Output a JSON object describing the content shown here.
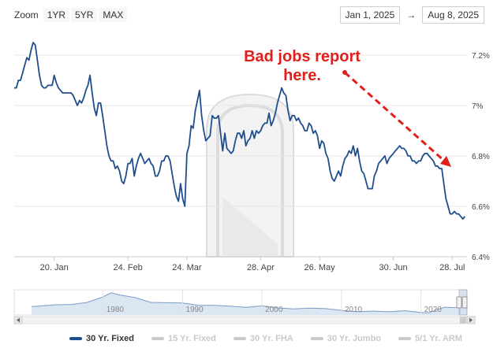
{
  "zoom": {
    "label": "Zoom",
    "buttons": [
      "1YR",
      "5YR",
      "MAX"
    ]
  },
  "range": {
    "from": "Jan 1, 2025",
    "to": "Aug 8, 2025",
    "arrow": "→"
  },
  "annotation": {
    "line1": "Bad jobs report",
    "line2": "here."
  },
  "colors": {
    "series": "#1f4e8c",
    "annotation": "#e0201b",
    "inactive": "#c9c9c9",
    "watermark": "#dcdcdc"
  },
  "legend": [
    {
      "label": "30 Yr. Fixed",
      "active": true
    },
    {
      "label": "15 Yr. Fixed",
      "active": false
    },
    {
      "label": "30 Yr. FHA",
      "active": false
    },
    {
      "label": "30 Yr. Jumbo",
      "active": false
    },
    {
      "label": "5/1 Yr. ARM",
      "active": false
    }
  ],
  "chart_data": {
    "type": "line",
    "title": "",
    "xlabel": "",
    "ylabel": "",
    "ylim": [
      6.4,
      7.3
    ],
    "x_tick_labels": [
      "20. Jan",
      "24. Feb",
      "24. Mar",
      "28. Apr",
      "26. May",
      "30. Jun",
      "28. Jul"
    ],
    "y_tick_labels": [
      "6.4%",
      "6.6%",
      "6.8%",
      "7%",
      "7.2%"
    ],
    "y_ticks": [
      6.4,
      6.6,
      6.8,
      7.0,
      7.2
    ],
    "x_tick_days": [
      20,
      55,
      83,
      118,
      146,
      181,
      209
    ],
    "series": [
      {
        "values": [
          [
            1,
            7.07
          ],
          [
            2,
            7.07
          ],
          [
            3,
            7.1
          ],
          [
            4,
            7.1
          ],
          [
            5,
            7.13
          ],
          [
            6,
            7.16
          ],
          [
            7,
            7.19
          ],
          [
            8,
            7.18
          ],
          [
            9,
            7.22
          ],
          [
            10,
            7.25
          ],
          [
            11,
            7.24
          ],
          [
            12,
            7.18
          ],
          [
            13,
            7.12
          ],
          [
            14,
            7.08
          ],
          [
            15,
            7.07
          ],
          [
            16,
            7.07
          ],
          [
            17,
            7.08
          ],
          [
            18,
            7.08
          ],
          [
            19,
            7.08
          ],
          [
            20,
            7.12
          ],
          [
            21,
            7.09
          ],
          [
            22,
            7.07
          ],
          [
            23,
            7.06
          ],
          [
            24,
            7.05
          ],
          [
            25,
            7.05
          ],
          [
            26,
            7.05
          ],
          [
            27,
            7.05
          ],
          [
            28,
            7.05
          ],
          [
            29,
            7.04
          ],
          [
            30,
            7.02
          ],
          [
            31,
            7.0
          ],
          [
            32,
            7.02
          ],
          [
            33,
            7.01
          ],
          [
            34,
            7.03
          ],
          [
            35,
            7.06
          ],
          [
            36,
            7.08
          ],
          [
            37,
            7.12
          ],
          [
            38,
            7.05
          ],
          [
            39,
            6.99
          ],
          [
            40,
            6.96
          ],
          [
            41,
            7.01
          ],
          [
            42,
            7.01
          ],
          [
            43,
            6.96
          ],
          [
            44,
            6.9
          ],
          [
            45,
            6.84
          ],
          [
            46,
            6.8
          ],
          [
            47,
            6.78
          ],
          [
            48,
            6.78
          ],
          [
            49,
            6.75
          ],
          [
            50,
            6.76
          ],
          [
            51,
            6.74
          ],
          [
            52,
            6.7
          ],
          [
            53,
            6.69
          ],
          [
            54,
            6.72
          ],
          [
            55,
            6.77
          ],
          [
            56,
            6.77
          ],
          [
            57,
            6.79
          ],
          [
            58,
            6.72
          ],
          [
            59,
            6.76
          ],
          [
            60,
            6.79
          ],
          [
            61,
            6.81
          ],
          [
            62,
            6.79
          ],
          [
            63,
            6.77
          ],
          [
            64,
            6.78
          ],
          [
            65,
            6.79
          ],
          [
            66,
            6.77
          ],
          [
            67,
            6.76
          ],
          [
            68,
            6.72
          ],
          [
            69,
            6.72
          ],
          [
            70,
            6.74
          ],
          [
            71,
            6.78
          ],
          [
            72,
            6.78
          ],
          [
            73,
            6.8
          ],
          [
            74,
            6.8
          ],
          [
            75,
            6.78
          ],
          [
            76,
            6.73
          ],
          [
            77,
            6.68
          ],
          [
            78,
            6.64
          ],
          [
            79,
            6.62
          ],
          [
            80,
            6.69
          ],
          [
            81,
            6.63
          ],
          [
            82,
            6.6
          ],
          [
            83,
            6.81
          ],
          [
            84,
            6.84
          ],
          [
            85,
            6.92
          ],
          [
            86,
            6.91
          ],
          [
            87,
            6.98
          ],
          [
            88,
            7.02
          ],
          [
            89,
            7.06
          ],
          [
            90,
            6.96
          ],
          [
            91,
            6.9
          ],
          [
            92,
            6.86
          ],
          [
            93,
            6.87
          ],
          [
            94,
            6.88
          ],
          [
            95,
            6.96
          ],
          [
            96,
            6.95
          ],
          [
            97,
            6.95
          ],
          [
            98,
            6.96
          ],
          [
            99,
            6.89
          ],
          [
            100,
            6.82
          ],
          [
            101,
            6.89
          ],
          [
            102,
            6.83
          ],
          [
            103,
            6.82
          ],
          [
            104,
            6.81
          ],
          [
            105,
            6.82
          ],
          [
            106,
            6.86
          ],
          [
            107,
            6.89
          ],
          [
            108,
            6.89
          ],
          [
            109,
            6.87
          ],
          [
            110,
            6.9
          ],
          [
            111,
            6.84
          ],
          [
            112,
            6.86
          ],
          [
            113,
            6.87
          ],
          [
            114,
            6.9
          ],
          [
            115,
            6.87
          ],
          [
            116,
            6.9
          ],
          [
            117,
            6.89
          ],
          [
            118,
            6.9
          ],
          [
            119,
            6.92
          ],
          [
            120,
            6.93
          ],
          [
            121,
            6.93
          ],
          [
            122,
            6.97
          ],
          [
            123,
            6.92
          ],
          [
            124,
            6.94
          ],
          [
            125,
            6.97
          ],
          [
            126,
            7.01
          ],
          [
            127,
            7.04
          ],
          [
            128,
            7.07
          ],
          [
            129,
            7.05
          ],
          [
            130,
            7.04
          ],
          [
            131,
            6.98
          ],
          [
            132,
            6.94
          ],
          [
            133,
            6.96
          ],
          [
            134,
            6.96
          ],
          [
            135,
            6.94
          ],
          [
            136,
            6.95
          ],
          [
            137,
            6.93
          ],
          [
            138,
            6.92
          ],
          [
            139,
            6.9
          ],
          [
            140,
            6.9
          ],
          [
            141,
            6.93
          ],
          [
            142,
            6.92
          ],
          [
            143,
            6.89
          ],
          [
            144,
            6.9
          ],
          [
            145,
            6.88
          ],
          [
            146,
            6.83
          ],
          [
            147,
            6.86
          ],
          [
            148,
            6.85
          ],
          [
            149,
            6.81
          ],
          [
            150,
            6.79
          ],
          [
            151,
            6.74
          ],
          [
            152,
            6.71
          ],
          [
            153,
            6.7
          ],
          [
            154,
            6.72
          ],
          [
            155,
            6.74
          ],
          [
            156,
            6.72
          ],
          [
            157,
            6.76
          ],
          [
            158,
            6.79
          ],
          [
            159,
            6.8
          ],
          [
            160,
            6.82
          ],
          [
            161,
            6.81
          ],
          [
            162,
            6.84
          ],
          [
            163,
            6.8
          ],
          [
            164,
            6.83
          ],
          [
            165,
            6.78
          ],
          [
            166,
            6.74
          ],
          [
            167,
            6.73
          ],
          [
            168,
            6.7
          ],
          [
            169,
            6.67
          ],
          [
            170,
            6.67
          ],
          [
            171,
            6.67
          ],
          [
            172,
            6.72
          ],
          [
            173,
            6.74
          ],
          [
            174,
            6.77
          ],
          [
            175,
            6.78
          ],
          [
            176,
            6.79
          ],
          [
            177,
            6.8
          ],
          [
            178,
            6.77
          ],
          [
            179,
            6.79
          ],
          [
            180,
            6.8
          ],
          [
            181,
            6.81
          ],
          [
            182,
            6.82
          ],
          [
            183,
            6.83
          ],
          [
            184,
            6.84
          ],
          [
            185,
            6.83
          ],
          [
            186,
            6.83
          ],
          [
            187,
            6.82
          ],
          [
            188,
            6.8
          ],
          [
            189,
            6.8
          ],
          [
            190,
            6.78
          ],
          [
            191,
            6.78
          ],
          [
            192,
            6.77
          ],
          [
            193,
            6.78
          ],
          [
            194,
            6.78
          ],
          [
            195,
            6.8
          ],
          [
            196,
            6.81
          ],
          [
            197,
            6.81
          ],
          [
            198,
            6.8
          ],
          [
            199,
            6.79
          ],
          [
            200,
            6.78
          ],
          [
            201,
            6.76
          ],
          [
            202,
            6.76
          ],
          [
            203,
            6.75
          ],
          [
            204,
            6.75
          ],
          [
            205,
            6.69
          ],
          [
            206,
            6.63
          ],
          [
            207,
            6.6
          ],
          [
            208,
            6.57
          ],
          [
            209,
            6.57
          ],
          [
            210,
            6.58
          ],
          [
            211,
            6.57
          ],
          [
            212,
            6.57
          ],
          [
            213,
            6.56
          ],
          [
            214,
            6.55
          ],
          [
            215,
            6.56
          ]
        ]
      }
    ]
  },
  "navigator": {
    "x_labels": [
      "1980",
      "1990",
      "2000",
      "2010",
      "2020"
    ],
    "values": [
      [
        1971,
        7.4
      ],
      [
        1974,
        8.8
      ],
      [
        1976,
        9.0
      ],
      [
        1978,
        10.5
      ],
      [
        1979,
        12.5
      ],
      [
        1980,
        14.5
      ],
      [
        1981,
        17.5
      ],
      [
        1982,
        16.0
      ],
      [
        1984,
        14.0
      ],
      [
        1986,
        10.5
      ],
      [
        1988,
        10.3
      ],
      [
        1990,
        10.1
      ],
      [
        1992,
        8.4
      ],
      [
        1994,
        8.4
      ],
      [
        1996,
        7.8
      ],
      [
        1998,
        6.9
      ],
      [
        2000,
        8.0
      ],
      [
        2002,
        6.5
      ],
      [
        2004,
        5.8
      ],
      [
        2006,
        6.4
      ],
      [
        2008,
        6.0
      ],
      [
        2010,
        4.7
      ],
      [
        2012,
        3.7
      ],
      [
        2014,
        4.2
      ],
      [
        2016,
        3.7
      ],
      [
        2018,
        4.5
      ],
      [
        2020,
        3.1
      ],
      [
        2021,
        2.9
      ],
      [
        2022,
        5.3
      ],
      [
        2023,
        7.0
      ],
      [
        2024,
        6.8
      ],
      [
        2025,
        6.7
      ]
    ],
    "y_range": [
      2.5,
      18.5
    ],
    "x_range": [
      1970,
      2025.6
    ],
    "selected_range": [
      2025.0,
      2025.6
    ]
  }
}
